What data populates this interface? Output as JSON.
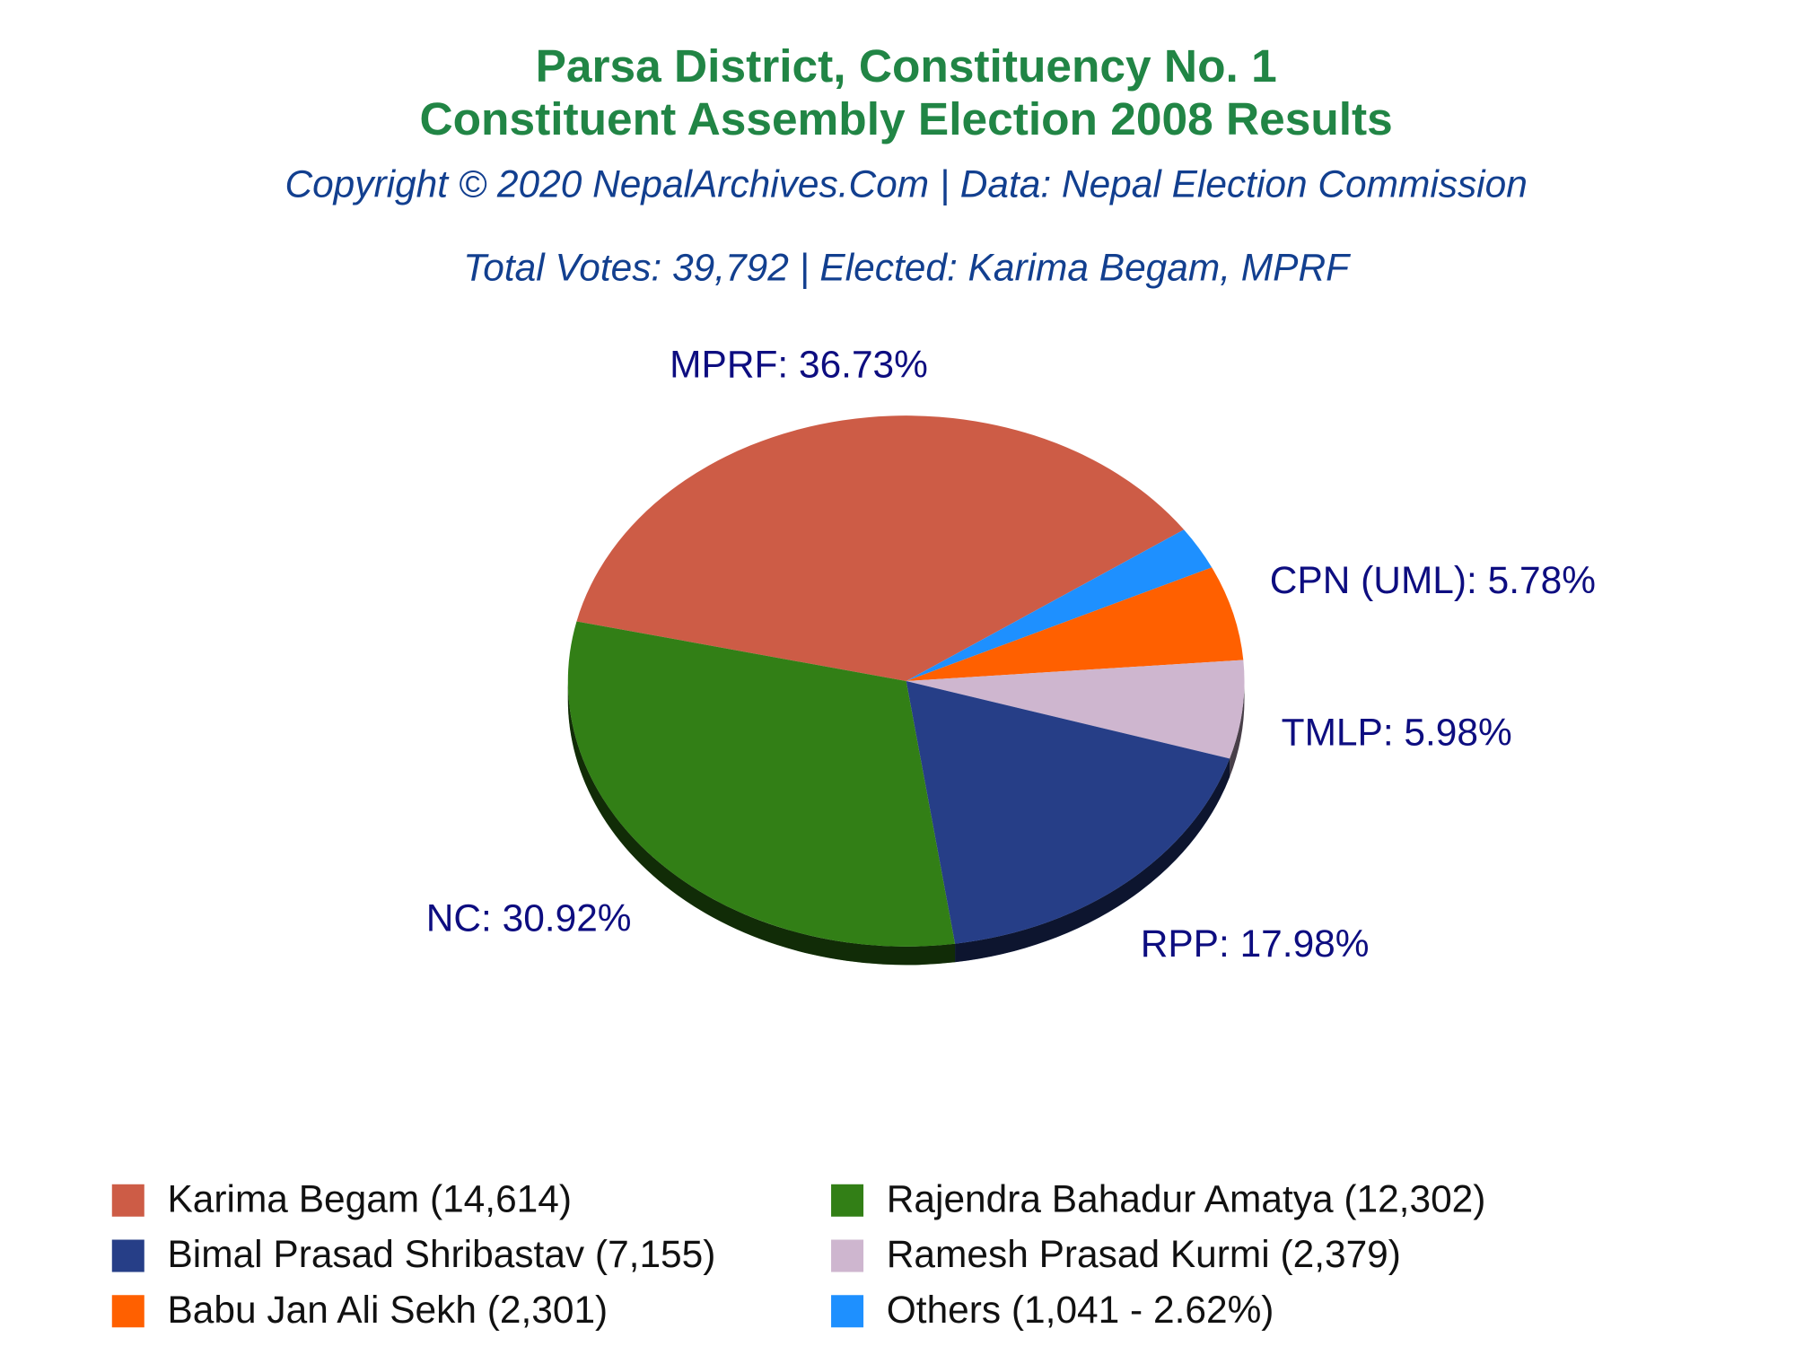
{
  "chart_data": {
    "type": "pie",
    "title": [
      "Parsa District, Constituency No. 1",
      "Constituent Assembly Election 2008 Results"
    ],
    "subtitle": "Copyright © 2020 NepalArchives.Com | Data: Nepal Election Commission",
    "annotation": "Total Votes: 39,792 | Elected: Karima Begam, MPRF",
    "values": [
      36.73,
      2.62,
      5.78,
      5.98,
      17.98,
      30.92
    ],
    "value_labels": [
      "MPRF: 36.73%",
      null,
      "CPN (UML): 5.78%",
      "TMLP: 5.98%",
      "RPP: 17.98%",
      "NC: 30.92%"
    ],
    "colors": [
      "#cd5c46",
      "#1e90ff",
      "#ff6000",
      "#ceb6cf",
      "#263e87",
      "#327f16"
    ],
    "legend": [
      {
        "label": "Karima Begam (14,614)",
        "color": "#cd5c46"
      },
      {
        "label": "Rajendra Bahadur Amatya (12,302)",
        "color": "#327f16"
      },
      {
        "label": "Bimal Prasad Shribastav (7,155)",
        "color": "#263e87"
      },
      {
        "label": "Ramesh Prasad Kurmi (2,379)",
        "color": "#ceb6cf"
      },
      {
        "label": "Babu Jan Ali Sekh (2,301)",
        "color": "#ff6000"
      },
      {
        "label": "Others (1,041 - 2.62%)",
        "color": "#1e90ff"
      }
    ]
  }
}
